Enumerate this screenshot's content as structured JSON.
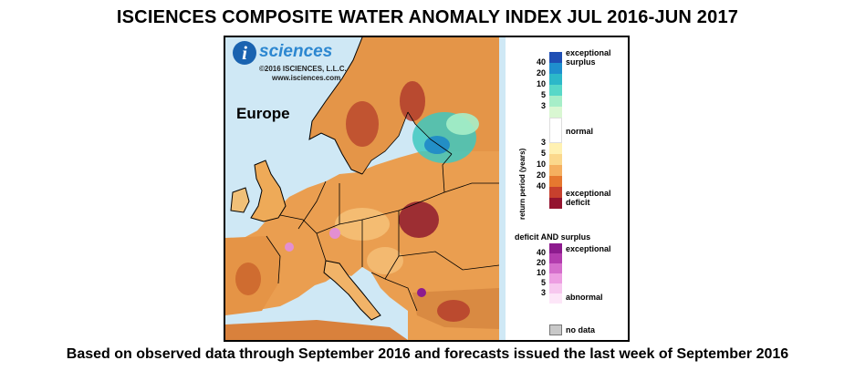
{
  "title": "ISCIENCES COMPOSITE WATER ANOMALY INDEX JUL 2016-JUN 2017",
  "footer": "Based on observed data through September 2016 and forecasts issued the last week of September 2016",
  "map": {
    "logo_letter": "i",
    "logo_text": "sciences",
    "copyright": "©2016 ISCIENCES, L.L.C.",
    "website": "www.isciences.com",
    "region": "Europe",
    "colors": {
      "sea": "#cfe8f5",
      "deficit_light": "#f7c57d",
      "deficit_mid": "#e79a4a",
      "deficit_strong": "#c9622a",
      "deficit_extreme": "#8f1a2e",
      "surplus_light": "#a6eec8",
      "surplus_mid": "#3fc8c0",
      "surplus_strong": "#1e88c8",
      "both": "#e38fd2",
      "border": "#000000"
    }
  },
  "legend": {
    "axis_label": "return period (years)",
    "surplus": {
      "top_label": "exceptional",
      "top_label2": "surplus",
      "ticks": [
        "40",
        "20",
        "10",
        "5",
        "3"
      ],
      "colors": [
        "#1f4fb4",
        "#1f8fce",
        "#2cb8c9",
        "#58d8c8",
        "#a6eec8",
        "#d9f7d2"
      ]
    },
    "normal_label": "normal",
    "normal_color": "#ffffff",
    "deficit": {
      "ticks": [
        "3",
        "5",
        "10",
        "20",
        "40"
      ],
      "colors": [
        "#fff1b2",
        "#fbd88c",
        "#f5b060",
        "#e6782f",
        "#c7402d",
        "#94132f"
      ],
      "bottom_label": "exceptional",
      "bottom_label2": "deficit"
    },
    "both": {
      "heading": "deficit AND surplus",
      "top_label": "exceptional",
      "ticks": [
        "40",
        "20",
        "10",
        "5",
        "3"
      ],
      "colors": [
        "#8d1b8e",
        "#b33cae",
        "#d56ecc",
        "#ed9ee2",
        "#f7c8ef",
        "#fde6f8"
      ],
      "bottom_label": "abnormal"
    },
    "no_data_label": "no data",
    "no_data_color": "#c8c8c8"
  }
}
